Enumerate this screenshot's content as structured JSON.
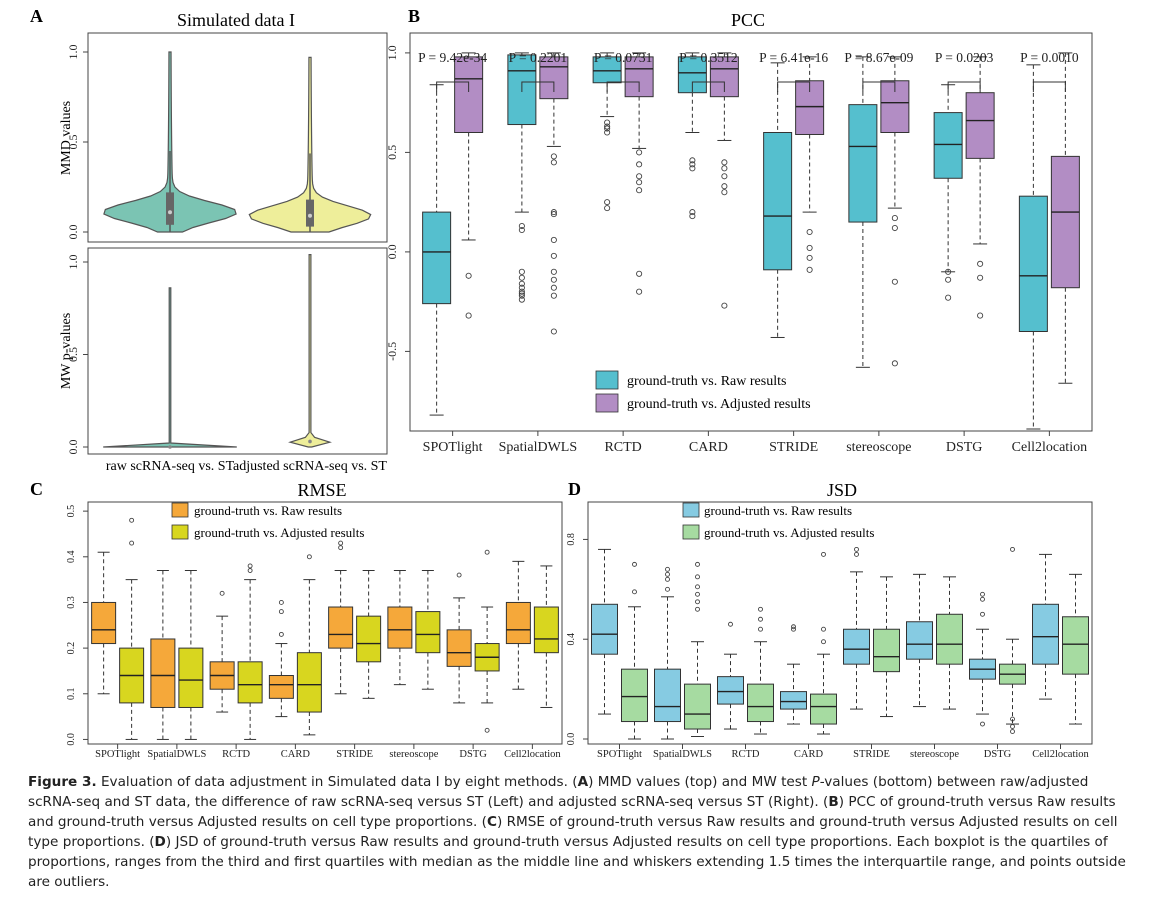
{
  "panels": {
    "A": {
      "letter": "A",
      "title": "Simulated data I",
      "top_ylabel": "MMD values",
      "bottom_ylabel": "MW p-values",
      "xlabels": [
        "raw scRNA-seq vs. ST",
        "adjusted scRNA-seq vs. ST"
      ]
    },
    "B": {
      "letter": "B",
      "title": "PCC"
    },
    "C": {
      "letter": "C",
      "title": "RMSE"
    },
    "D": {
      "letter": "D",
      "title": "JSD"
    }
  },
  "methods": [
    "SPOTlight",
    "SpatialDWLS",
    "RCTD",
    "CARD",
    "STRIDE",
    "stereoscope",
    "DSTG",
    "Cell2location"
  ],
  "colors": {
    "violin_raw": "#7bc4b3",
    "violin_adj": "#eeee9a",
    "pcc_raw": "#55bfce",
    "pcc_adj": "#b28dc4",
    "rmse_raw": "#f5a83a",
    "rmse_adj": "#d8d61f",
    "jsd_raw": "#86cbe2",
    "jsd_adj": "#a6dba1"
  },
  "chart_data": [
    {
      "type": "violin",
      "panel": "A-top",
      "ylabel": "MMD values",
      "ylim": [
        0,
        1.0
      ],
      "yticks": [
        "0.0",
        "0.5",
        "1.0"
      ],
      "categories": [
        "raw scRNA-seq vs. ST",
        "adjusted scRNA-seq vs. ST"
      ],
      "series": [
        {
          "median": 0.11,
          "q1": 0.04,
          "q3": 0.22,
          "min": 0.0,
          "max": 1.0
        },
        {
          "median": 0.09,
          "q1": 0.03,
          "q3": 0.18,
          "min": 0.0,
          "max": 0.97
        }
      ]
    },
    {
      "type": "violin",
      "panel": "A-bottom",
      "ylabel": "MW p-values",
      "ylim": [
        0,
        1.0
      ],
      "yticks": [
        "0.0",
        "0.5",
        "1.0"
      ],
      "categories": [
        "raw scRNA-seq vs. ST",
        "adjusted scRNA-seq vs. ST"
      ],
      "series": [
        {
          "median": 0.0,
          "min": 0.0,
          "max": 0.86
        },
        {
          "median": 0.03,
          "min": 0.0,
          "max": 1.04
        }
      ]
    },
    {
      "type": "box",
      "panel": "B",
      "title": "PCC",
      "ylim": [
        -0.9,
        1.1
      ],
      "yticks": [
        "-0.5",
        "0.0",
        "0.5",
        "1.0"
      ],
      "categories": [
        "SPOTlight",
        "SpatialDWLS",
        "RCTD",
        "CARD",
        "STRIDE",
        "stereoscope",
        "DSTG",
        "Cell2location"
      ],
      "pvalues": [
        "P = 9.42e-34",
        "P = 0.2201",
        "P = 0.0731",
        "P = 0.3512",
        "P = 6.41e-16",
        "P = 8.67e-09",
        "P = 0.0203",
        "P = 0.0010"
      ],
      "legend": [
        "ground-truth vs. Raw results",
        "ground-truth vs. Adjusted results"
      ],
      "series": [
        {
          "name": "ground-truth vs. Raw results",
          "boxes": [
            {
              "min": -0.82,
              "q1": -0.26,
              "median": 0.0,
              "q3": 0.2,
              "max": 0.84,
              "outliers": []
            },
            {
              "min": 0.2,
              "q1": 0.64,
              "median": 0.91,
              "q3": 0.99,
              "max": 1.0,
              "outliers": [
                -0.1,
                -0.13,
                -0.16,
                -0.18,
                -0.2,
                -0.21,
                -0.22,
                -0.24,
                0.13,
                0.11
              ]
            },
            {
              "min": 0.68,
              "q1": 0.85,
              "median": 0.91,
              "q3": 0.98,
              "max": 1.0,
              "outliers": [
                0.6,
                0.62,
                0.63,
                0.65,
                0.25,
                0.22
              ]
            },
            {
              "min": 0.6,
              "q1": 0.8,
              "median": 0.9,
              "q3": 0.98,
              "max": 1.0,
              "outliers": [
                0.42,
                0.44,
                0.46,
                0.2,
                0.18
              ]
            },
            {
              "min": -0.43,
              "q1": -0.09,
              "median": 0.18,
              "q3": 0.6,
              "max": 0.95,
              "outliers": []
            },
            {
              "min": -0.58,
              "q1": 0.15,
              "median": 0.53,
              "q3": 0.74,
              "max": 0.98,
              "outliers": []
            },
            {
              "min": -0.1,
              "q1": 0.37,
              "median": 0.54,
              "q3": 0.7,
              "max": 0.84,
              "outliers": [
                -0.1,
                -0.14,
                -0.23
              ]
            },
            {
              "min": -0.89,
              "q1": -0.4,
              "median": -0.12,
              "q3": 0.28,
              "max": 0.94,
              "outliers": []
            }
          ]
        },
        {
          "name": "ground-truth vs. Adjusted results",
          "boxes": [
            {
              "min": 0.06,
              "q1": 0.6,
              "median": 0.87,
              "q3": 0.98,
              "max": 1.0,
              "outliers": [
                -0.12,
                -0.32
              ]
            },
            {
              "min": 0.53,
              "q1": 0.77,
              "median": 0.93,
              "q3": 0.98,
              "max": 1.0,
              "outliers": [
                0.45,
                0.48,
                0.2,
                0.19,
                0.06,
                -0.02,
                -0.1,
                -0.14,
                -0.18,
                -0.22,
                -0.4
              ]
            },
            {
              "min": 0.52,
              "q1": 0.78,
              "median": 0.92,
              "q3": 0.98,
              "max": 1.0,
              "outliers": [
                0.5,
                0.44,
                0.38,
                0.35,
                0.31,
                -0.11,
                -0.2
              ]
            },
            {
              "min": 0.56,
              "q1": 0.78,
              "median": 0.92,
              "q3": 0.98,
              "max": 1.0,
              "outliers": [
                0.45,
                0.42,
                0.38,
                0.33,
                0.3,
                -0.27
              ]
            },
            {
              "min": 0.2,
              "q1": 0.59,
              "median": 0.73,
              "q3": 0.86,
              "max": 0.98,
              "outliers": [
                0.1,
                0.02,
                -0.03,
                -0.09
              ]
            },
            {
              "min": 0.22,
              "q1": 0.6,
              "median": 0.75,
              "q3": 0.86,
              "max": 0.98,
              "outliers": [
                0.17,
                0.12,
                -0.15,
                -0.56
              ]
            },
            {
              "min": 0.04,
              "q1": 0.47,
              "median": 0.66,
              "q3": 0.8,
              "max": 0.98,
              "outliers": [
                -0.06,
                -0.13,
                -0.32
              ]
            },
            {
              "min": -0.66,
              "q1": -0.18,
              "median": 0.2,
              "q3": 0.48,
              "max": 1.0,
              "outliers": []
            }
          ]
        }
      ]
    },
    {
      "type": "box",
      "panel": "C",
      "title": "RMSE",
      "ylim": [
        -0.01,
        0.52
      ],
      "yticks": [
        "0.0",
        "0.1",
        "0.2",
        "0.3",
        "0.4",
        "0.5"
      ],
      "categories": [
        "SPOTlight",
        "SpatialDWLS",
        "RCTD",
        "CARD",
        "STRIDE",
        "stereoscope",
        "DSTG",
        "Cell2location"
      ],
      "legend": [
        "ground-truth vs. Raw results",
        "ground-truth vs. Adjusted results"
      ],
      "series": [
        {
          "name": "ground-truth vs. Raw results",
          "boxes": [
            {
              "min": 0.1,
              "q1": 0.21,
              "median": 0.24,
              "q3": 0.3,
              "max": 0.41,
              "outliers": []
            },
            {
              "min": 0.0,
              "q1": 0.07,
              "median": 0.14,
              "q3": 0.22,
              "max": 0.37,
              "outliers": []
            },
            {
              "min": 0.06,
              "q1": 0.11,
              "median": 0.14,
              "q3": 0.17,
              "max": 0.27,
              "outliers": [
                0.32
              ]
            },
            {
              "min": 0.05,
              "q1": 0.09,
              "median": 0.12,
              "q3": 0.14,
              "max": 0.21,
              "outliers": [
                0.23,
                0.28,
                0.3
              ]
            },
            {
              "min": 0.1,
              "q1": 0.2,
              "median": 0.23,
              "q3": 0.29,
              "max": 0.37,
              "outliers": [
                0.42,
                0.43
              ]
            },
            {
              "min": 0.12,
              "q1": 0.2,
              "median": 0.24,
              "q3": 0.29,
              "max": 0.37,
              "outliers": []
            },
            {
              "min": 0.08,
              "q1": 0.16,
              "median": 0.19,
              "q3": 0.24,
              "max": 0.31,
              "outliers": [
                0.36
              ]
            },
            {
              "min": 0.11,
              "q1": 0.21,
              "median": 0.24,
              "q3": 0.3,
              "max": 0.39,
              "outliers": []
            }
          ]
        },
        {
          "name": "ground-truth vs. Adjusted results",
          "boxes": [
            {
              "min": 0.0,
              "q1": 0.08,
              "median": 0.14,
              "q3": 0.2,
              "max": 0.35,
              "outliers": [
                0.43,
                0.48
              ]
            },
            {
              "min": 0.0,
              "q1": 0.07,
              "median": 0.13,
              "q3": 0.2,
              "max": 0.37,
              "outliers": []
            },
            {
              "min": 0.0,
              "q1": 0.08,
              "median": 0.12,
              "q3": 0.17,
              "max": 0.35,
              "outliers": [
                0.37,
                0.38
              ]
            },
            {
              "min": 0.01,
              "q1": 0.06,
              "median": 0.12,
              "q3": 0.19,
              "max": 0.35,
              "outliers": [
                0.4
              ]
            },
            {
              "min": 0.09,
              "q1": 0.17,
              "median": 0.21,
              "q3": 0.27,
              "max": 0.37,
              "outliers": []
            },
            {
              "min": 0.11,
              "q1": 0.19,
              "median": 0.23,
              "q3": 0.28,
              "max": 0.37,
              "outliers": []
            },
            {
              "min": 0.08,
              "q1": 0.15,
              "median": 0.18,
              "q3": 0.21,
              "max": 0.29,
              "outliers": [
                0.02,
                0.41
              ]
            },
            {
              "min": 0.07,
              "q1": 0.19,
              "median": 0.22,
              "q3": 0.29,
              "max": 0.38,
              "outliers": []
            }
          ]
        }
      ]
    },
    {
      "type": "box",
      "panel": "D",
      "title": "JSD",
      "ylim": [
        -0.02,
        0.95
      ],
      "yticks": [
        "0.0",
        "0.4",
        "0.8"
      ],
      "categories": [
        "SPOTlight",
        "SpatialDWLS",
        "RCTD",
        "CARD",
        "STRIDE",
        "stereoscope",
        "DSTG",
        "Cell2location"
      ],
      "legend": [
        "ground-truth vs. Raw results",
        "ground-truth vs. Adjusted results"
      ],
      "series": [
        {
          "name": "ground-truth vs. Raw results",
          "boxes": [
            {
              "min": 0.1,
              "q1": 0.34,
              "median": 0.42,
              "q3": 0.54,
              "max": 0.76,
              "outliers": []
            },
            {
              "min": 0.0,
              "q1": 0.07,
              "median": 0.13,
              "q3": 0.28,
              "max": 0.57,
              "outliers": [
                0.6,
                0.64,
                0.66,
                0.68
              ]
            },
            {
              "min": 0.04,
              "q1": 0.14,
              "median": 0.19,
              "q3": 0.25,
              "max": 0.34,
              "outliers": [
                0.46
              ]
            },
            {
              "min": 0.06,
              "q1": 0.12,
              "median": 0.15,
              "q3": 0.19,
              "max": 0.3,
              "outliers": [
                0.44,
                0.45
              ]
            },
            {
              "min": 0.12,
              "q1": 0.3,
              "median": 0.36,
              "q3": 0.44,
              "max": 0.67,
              "outliers": [
                0.74,
                0.76
              ]
            },
            {
              "min": 0.13,
              "q1": 0.32,
              "median": 0.38,
              "q3": 0.47,
              "max": 0.66,
              "outliers": []
            },
            {
              "min": 0.1,
              "q1": 0.24,
              "median": 0.28,
              "q3": 0.32,
              "max": 0.44,
              "outliers": [
                0.06,
                0.5,
                0.56,
                0.58
              ]
            },
            {
              "min": 0.16,
              "q1": 0.3,
              "median": 0.41,
              "q3": 0.54,
              "max": 0.74,
              "outliers": []
            }
          ]
        },
        {
          "name": "ground-truth vs. Adjusted results",
          "boxes": [
            {
              "min": 0.0,
              "q1": 0.07,
              "median": 0.17,
              "q3": 0.28,
              "max": 0.53,
              "outliers": [
                0.59,
                0.7
              ]
            },
            {
              "min": 0.01,
              "q1": 0.04,
              "median": 0.1,
              "q3": 0.22,
              "max": 0.39,
              "outliers": [
                0.52,
                0.55,
                0.58,
                0.61,
                0.65,
                0.7
              ]
            },
            {
              "min": 0.02,
              "q1": 0.07,
              "median": 0.13,
              "q3": 0.22,
              "max": 0.39,
              "outliers": [
                0.44,
                0.48,
                0.52
              ]
            },
            {
              "min": 0.02,
              "q1": 0.06,
              "median": 0.13,
              "q3": 0.18,
              "max": 0.34,
              "outliers": [
                0.39,
                0.44,
                0.74
              ]
            },
            {
              "min": 0.09,
              "q1": 0.27,
              "median": 0.33,
              "q3": 0.44,
              "max": 0.65,
              "outliers": []
            },
            {
              "min": 0.12,
              "q1": 0.3,
              "median": 0.38,
              "q3": 0.5,
              "max": 0.65,
              "outliers": []
            },
            {
              "min": 0.06,
              "q1": 0.22,
              "median": 0.26,
              "q3": 0.3,
              "max": 0.4,
              "outliers": [
                0.03,
                0.05,
                0.08,
                0.76
              ]
            },
            {
              "min": 0.06,
              "q1": 0.26,
              "median": 0.38,
              "q3": 0.49,
              "max": 0.66,
              "outliers": []
            }
          ]
        }
      ]
    }
  ],
  "caption": {
    "label": "Figure 3.",
    "t1": " Evaluation of data adjustment in Simulated data I by eight methods. (",
    "a": "A",
    "t2": ") MMD values (top) and MW test ",
    "p": "P",
    "t3": "-values (bottom) between raw/adjusted scRNA-seq and ST data, the difference of raw scRNA-seq versus ST (Left) and adjusted scRNA-seq versus ST (Right). (",
    "b": "B",
    "t4": ") PCC of ground-truth versus Raw results and ground-truth versus Adjusted results on cell type proportions. (",
    "c": "C",
    "t5": ") RMSE of ground-truth versus Raw results and ground-truth versus Adjusted results on cell type proportions. (",
    "d": "D",
    "t6": ") JSD of ground-truth versus Raw results and ground-truth versus Adjusted results on cell type proportions. Each boxplot is the quartiles of proportions, ranges from the third and first quartiles with median as the middle line and whiskers extending 1.5 times the interquartile range, and points outside are outliers."
  }
}
